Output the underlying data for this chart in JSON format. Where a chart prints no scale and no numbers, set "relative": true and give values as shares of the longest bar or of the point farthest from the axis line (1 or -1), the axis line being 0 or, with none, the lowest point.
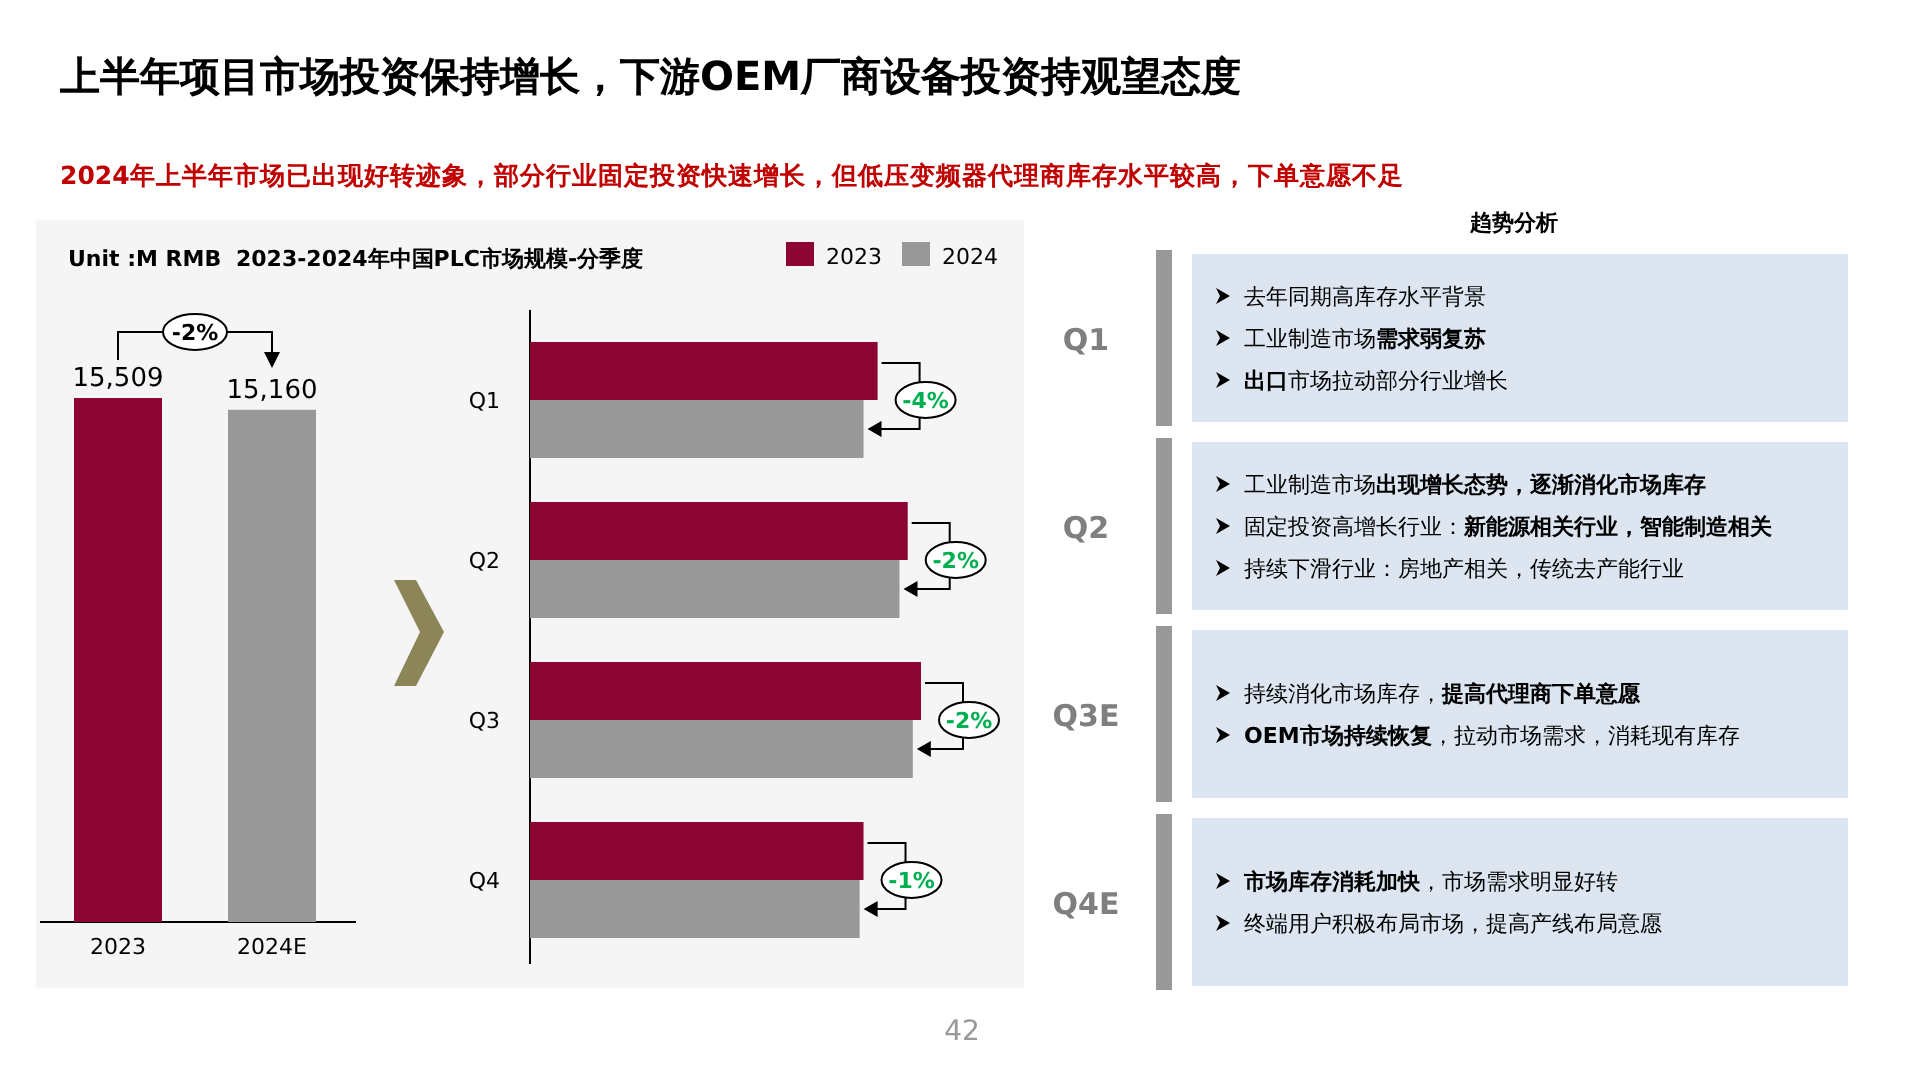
{
  "chart_data": [
    {
      "type": "bar",
      "title": "上半年项目市场投资保持增长，下游OEM厂商设备投资持观望态度",
      "subtitle": "2024年上半年市场已出现好转迹象，部分行业固定投资快速增长，但低压变频器代理商库存水平较高，下单意愿不足",
      "categories": [
        "2023",
        "2024E"
      ],
      "values": [
        15509,
        15160
      ],
      "value_labels": [
        "15,509",
        "15,160"
      ],
      "colors": [
        "#8b0632",
        "#989898"
      ],
      "annotations": [
        "Unit :M RMB",
        "-2%",
        "42"
      ]
    },
    {
      "type": "bar",
      "orientation": "horizontal",
      "relative": true,
      "title": "2023-2024年中国PLC市场规模-分季度",
      "legend": "top right",
      "categories": [
        "Q1",
        "Q2",
        "Q3",
        "Q4"
      ],
      "series": [
        {
          "name": "2023",
          "color": "#8b0632",
          "values": [
            0.889,
            0.966,
            1,
            0.853
          ]
        },
        {
          "name": "2024",
          "color": "#989898",
          "values": [
            0.853,
            0.945,
            0.979,
            0.843
          ]
        }
      ],
      "annotations": [
        "-4%",
        "-2%",
        "-2%",
        "-1%"
      ]
    },
    {
      "type": "other",
      "title": "趋势分析",
      "categories": [
        "Q1"
      ],
      "annotations": [
        "去年同期高库存水平背景",
        "工业制造市场**需求弱复苏**",
        "**出口**市场拉动部分行业增长"
      ]
    },
    {
      "type": "other",
      "categories": [
        "Q2"
      ],
      "annotations": [
        "工业制造市场**出现增长态势，逐渐消化市场库存**",
        "固定投资高增长行业：**新能源相关行业，智能制造相关**",
        "持续下滑行业：房地产相关，传统去产能行业"
      ]
    },
    {
      "type": "other",
      "categories": [
        "Q3E"
      ],
      "annotations": [
        "持续消化市场库存，**提高代理商下单意愿**",
        "**OEM市场持续恢复**，拉动市场需求，消耗现有库存"
      ]
    },
    {
      "type": "other",
      "categories": [
        "Q4E"
      ],
      "annotations": [
        "**市场库存消耗加快**，市场需求明显好转",
        "终端用户积极布局市场，提高产线布局意愿"
      ]
    }
  ]
}
